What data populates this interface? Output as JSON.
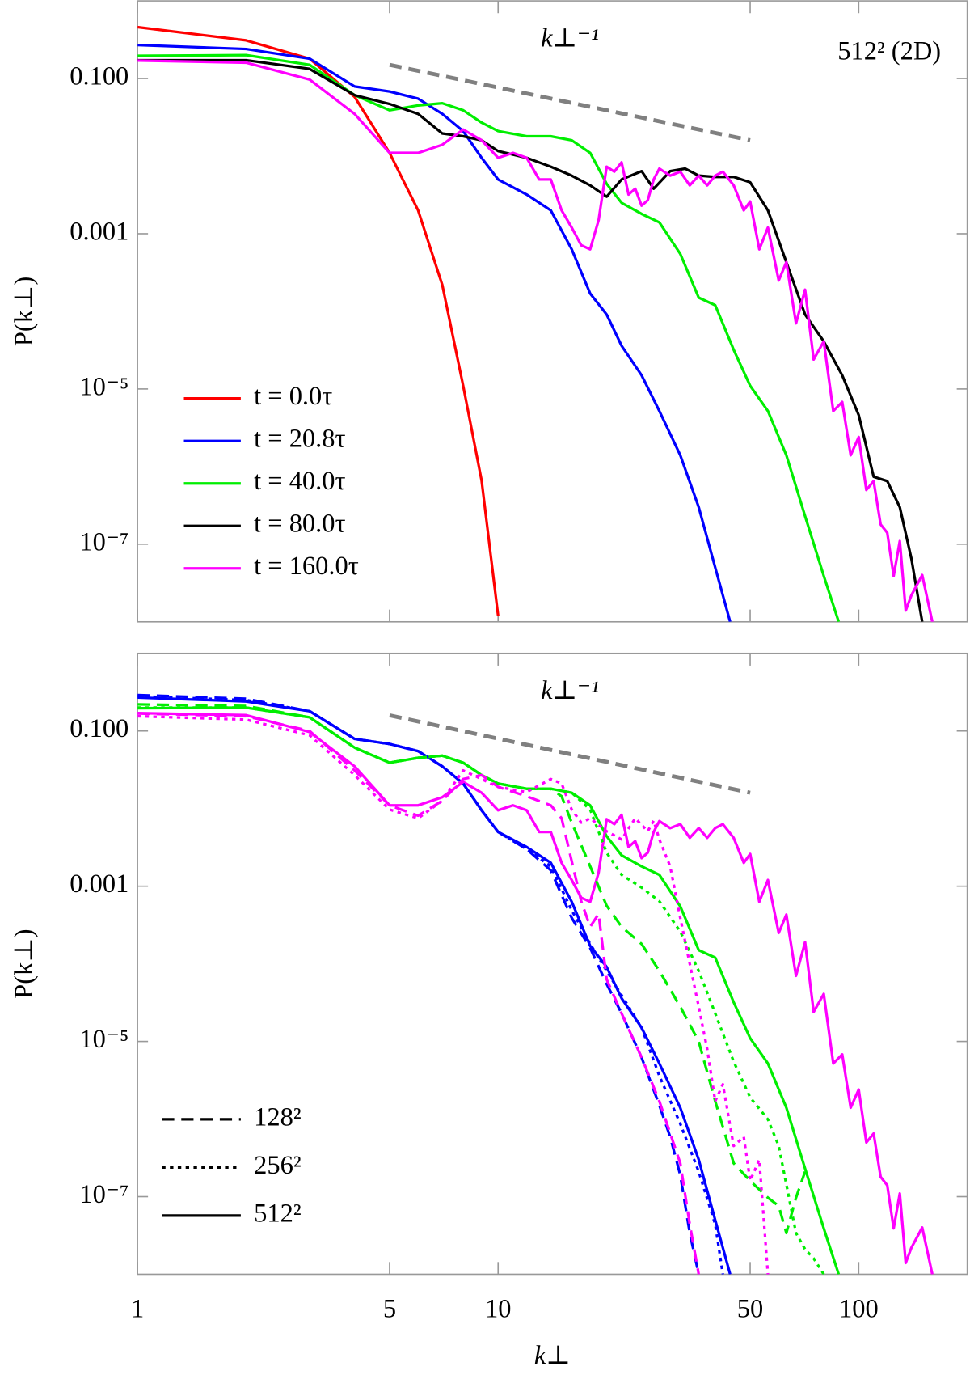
{
  "chart_data": [
    {
      "type": "line",
      "ylabel": "P(k⊥)",
      "xlim": [
        1,
        200
      ],
      "ylim": [
        1e-08,
        1
      ],
      "xscale": "log",
      "yscale": "log",
      "xticks": [
        1,
        5,
        10,
        50,
        100
      ],
      "xtick_labels": false,
      "yticks": [
        {
          "value": 0.1,
          "label": "0.100"
        },
        0.001,
        {
          "value": 1e-05,
          "label": "10⁻⁵"
        },
        {
          "value": 1e-07,
          "label": "10⁻⁷"
        }
      ],
      "annotation": "512² (2D)",
      "legend": "lower left",
      "reference_line": {
        "label": "k⊥⁻¹",
        "color": "#808080",
        "x": [
          5,
          50
        ],
        "values": [
          0.15,
          0.016
        ]
      },
      "series": [
        {
          "name": "t = 0.0τ",
          "color": "#ff0000",
          "x": [
            1,
            2,
            3,
            4,
            5,
            6,
            7,
            8,
            9,
            10
          ],
          "values": [
            0.46,
            0.31,
            0.18,
            0.058,
            0.011,
            0.002,
            0.00022,
            1.1e-05,
            6.6e-07,
            1.2e-08
          ]
        },
        {
          "name": "t = 20.8τ",
          "color": "#0000ff",
          "x": [
            1,
            2,
            3,
            4,
            5,
            6,
            7,
            8,
            9,
            10,
            12,
            14,
            16,
            18,
            20,
            22,
            25,
            28,
            32,
            36,
            40,
            44
          ],
          "values": [
            0.27,
            0.24,
            0.18,
            0.079,
            0.068,
            0.055,
            0.035,
            0.021,
            0.0095,
            0.005,
            0.0032,
            0.002,
            0.00063,
            0.00017,
            9.1e-05,
            3.6e-05,
            1.5e-05,
            5.2e-06,
            1.4e-06,
            3e-07,
            5e-08,
            1e-08
          ]
        },
        {
          "name": "t = 40.0τ",
          "color": "#00ee00",
          "x": [
            1,
            2,
            3,
            4,
            5,
            6,
            7,
            8,
            9,
            10,
            12,
            14,
            16,
            18,
            20,
            22,
            25,
            28,
            32,
            36,
            40,
            45,
            50,
            56,
            63,
            71,
            80,
            88
          ],
          "values": [
            0.196,
            0.2,
            0.15,
            0.061,
            0.039,
            0.045,
            0.048,
            0.039,
            0.027,
            0.021,
            0.018,
            0.018,
            0.016,
            0.011,
            0.0044,
            0.0025,
            0.0018,
            0.0014,
            0.00055,
            0.00015,
            0.00012,
            3.2e-05,
            1.1e-05,
            5.2e-06,
            1.4e-06,
            2.3e-07,
            3.9e-08,
            1e-08
          ]
        },
        {
          "name": "t = 80.0τ",
          "color": "#000000",
          "x": [
            1,
            2,
            3,
            4,
            5,
            6,
            7,
            8,
            9,
            10,
            12,
            14,
            16,
            18,
            20,
            22,
            25,
            27,
            30,
            33,
            36,
            40,
            45,
            50,
            56,
            63,
            71,
            80,
            90,
            100,
            110,
            120,
            130,
            140,
            150
          ],
          "values": [
            0.172,
            0.172,
            0.133,
            0.061,
            0.047,
            0.035,
            0.0196,
            0.018,
            0.016,
            0.0116,
            0.0095,
            0.0073,
            0.0056,
            0.0042,
            0.003,
            0.005,
            0.0064,
            0.0038,
            0.0064,
            0.0069,
            0.0056,
            0.0054,
            0.0054,
            0.0046,
            0.002,
            0.00043,
            9.1e-05,
            4.1e-05,
            1.5e-05,
            4.6e-06,
            7.4e-07,
            6.5e-07,
            3e-07,
            6.5e-08,
            1e-08
          ]
        },
        {
          "name": "t = 160.0τ",
          "color": "#ff00ff",
          "x": [
            1,
            2,
            3,
            4,
            5,
            6,
            7,
            8,
            9,
            10,
            11,
            12,
            13,
            14,
            15,
            16,
            17,
            18,
            19,
            20,
            21,
            22,
            23,
            24,
            25,
            26,
            27,
            28,
            30,
            32,
            34,
            36,
            38,
            40,
            42,
            45,
            48,
            50,
            53,
            56,
            60,
            63,
            67,
            71,
            75,
            80,
            85,
            90,
            95,
            100,
            105,
            110,
            115,
            120,
            125,
            130,
            135,
            140,
            150,
            160
          ],
          "values": [
            0.17,
            0.16,
            0.097,
            0.035,
            0.011,
            0.011,
            0.014,
            0.022,
            0.016,
            0.0095,
            0.011,
            0.0095,
            0.005,
            0.005,
            0.002,
            0.0012,
            0.00071,
            0.00063,
            0.0015,
            0.0073,
            0.0063,
            0.0083,
            0.0032,
            0.0038,
            0.0023,
            0.0027,
            0.005,
            0.0069,
            0.0056,
            0.0063,
            0.0042,
            0.0056,
            0.0042,
            0.0056,
            0.0063,
            0.0042,
            0.002,
            0.0026,
            0.00063,
            0.0012,
            0.00025,
            0.00043,
            7e-05,
            0.00019,
            2.4e-05,
            4.1e-05,
            5.2e-06,
            6.8e-06,
            1.4e-06,
            2.4e-06,
            5e-07,
            6.5e-07,
            1.8e-07,
            1.4e-07,
            3.9e-08,
            1.1e-07,
            1.4e-08,
            2.2e-08,
            4e-08,
            1e-08
          ]
        }
      ]
    },
    {
      "type": "line",
      "xlabel": "k⊥",
      "ylabel": "P(k⊥)",
      "xlim": [
        1,
        200
      ],
      "ylim": [
        1e-08,
        1
      ],
      "xscale": "log",
      "yscale": "log",
      "xticks": [
        1,
        5,
        10,
        50,
        100
      ],
      "xtick_labels": true,
      "yticks": [
        {
          "value": 0.1,
          "label": "0.100"
        },
        0.001,
        {
          "value": 1e-05,
          "label": "10⁻⁵"
        },
        {
          "value": 1e-07,
          "label": "10⁻⁷"
        }
      ],
      "legend": "lower left",
      "reference_line": {
        "label": "k⊥⁻¹",
        "color": "#808080",
        "x": [
          5,
          50
        ],
        "values": [
          0.159,
          0.016
        ]
      },
      "style_legend": [
        {
          "name": "128²",
          "style": "dashed"
        },
        {
          "name": "256²",
          "style": "dotted"
        },
        {
          "name": "512²",
          "style": "solid"
        }
      ],
      "series": [
        {
          "color": "#0000ff",
          "style": "solid",
          "x": [
            1,
            2,
            3,
            4,
            5,
            6,
            7,
            8,
            9,
            10,
            12,
            14,
            16,
            18,
            20,
            22,
            25,
            28,
            32,
            36,
            40,
            44
          ],
          "values": [
            0.27,
            0.24,
            0.18,
            0.079,
            0.068,
            0.055,
            0.035,
            0.021,
            0.0095,
            0.005,
            0.0032,
            0.002,
            0.00063,
            0.00017,
            9.1e-05,
            3.6e-05,
            1.5e-05,
            5.2e-06,
            1.4e-06,
            3e-07,
            5e-08,
            1e-08
          ]
        },
        {
          "color": "#00ee00",
          "style": "solid",
          "x": [
            1,
            2,
            3,
            4,
            5,
            6,
            7,
            8,
            9,
            10,
            12,
            14,
            16,
            18,
            20,
            22,
            25,
            28,
            32,
            36,
            40,
            45,
            50,
            56,
            63,
            71,
            80,
            88
          ],
          "values": [
            0.196,
            0.2,
            0.15,
            0.061,
            0.039,
            0.045,
            0.048,
            0.039,
            0.027,
            0.021,
            0.018,
            0.018,
            0.016,
            0.011,
            0.0044,
            0.0025,
            0.0018,
            0.0014,
            0.00055,
            0.00015,
            0.00012,
            3.2e-05,
            1.1e-05,
            5.2e-06,
            1.4e-06,
            2.3e-07,
            3.9e-08,
            1e-08
          ]
        },
        {
          "color": "#ff00ff",
          "style": "solid",
          "x": [
            1,
            2,
            3,
            4,
            5,
            6,
            7,
            8,
            9,
            10,
            11,
            12,
            13,
            14,
            15,
            16,
            17,
            18,
            19,
            20,
            21,
            22,
            23,
            24,
            25,
            26,
            27,
            28,
            30,
            32,
            34,
            36,
            38,
            40,
            42,
            45,
            48,
            50,
            53,
            56,
            60,
            63,
            67,
            71,
            75,
            80,
            85,
            90,
            95,
            100,
            105,
            110,
            115,
            120,
            125,
            130,
            135,
            140,
            150,
            160
          ],
          "values": [
            0.17,
            0.16,
            0.097,
            0.035,
            0.011,
            0.011,
            0.014,
            0.022,
            0.016,
            0.0095,
            0.011,
            0.0095,
            0.005,
            0.005,
            0.002,
            0.0012,
            0.00071,
            0.00063,
            0.0015,
            0.0073,
            0.0063,
            0.0083,
            0.0032,
            0.0038,
            0.0023,
            0.0027,
            0.005,
            0.0069,
            0.0056,
            0.0063,
            0.0042,
            0.0056,
            0.0042,
            0.0056,
            0.0063,
            0.0042,
            0.002,
            0.0026,
            0.00063,
            0.0012,
            0.00025,
            0.00043,
            7e-05,
            0.00019,
            2.4e-05,
            4.1e-05,
            5.2e-06,
            6.8e-06,
            1.4e-06,
            2.4e-06,
            5e-07,
            6.5e-07,
            1.8e-07,
            1.4e-07,
            3.9e-08,
            1.1e-07,
            1.4e-08,
            2.2e-08,
            4e-08,
            1e-08
          ]
        },
        {
          "color": "#0000ff",
          "style": "dashed",
          "x": [
            1,
            2,
            3,
            4,
            5,
            6,
            7,
            8,
            9,
            10,
            12,
            14,
            16,
            18,
            20,
            22,
            25,
            28,
            30,
            32,
            34,
            36
          ],
          "values": [
            0.29,
            0.26,
            0.18,
            0.079,
            0.068,
            0.055,
            0.035,
            0.021,
            0.0095,
            0.005,
            0.003,
            0.0016,
            0.00039,
            0.00016,
            5.5e-05,
            2.3e-05,
            6.2e-06,
            1.5e-06,
            5.9e-07,
            1.9e-07,
            3.4e-08,
            1e-08
          ]
        },
        {
          "color": "#0000ff",
          "style": "dotted",
          "x": [
            1,
            2,
            3,
            4,
            5,
            6,
            7,
            8,
            9,
            10,
            12,
            14,
            16,
            18,
            20,
            25,
            28,
            32,
            36,
            40,
            42
          ],
          "values": [
            0.28,
            0.25,
            0.18,
            0.079,
            0.068,
            0.055,
            0.035,
            0.021,
            0.0095,
            0.005,
            0.003,
            0.0018,
            0.00049,
            0.00018,
            8.1e-05,
            1.5e-05,
            3.6e-06,
            8.7e-07,
            2.1e-07,
            4.4e-08,
            1e-08
          ]
        },
        {
          "color": "#00ee00",
          "style": "dashed",
          "x": [
            1,
            2,
            3,
            4,
            5,
            6,
            7,
            8,
            9,
            10,
            12,
            14,
            15,
            16,
            18,
            20,
            22,
            25,
            28,
            32,
            36,
            40,
            45,
            50,
            56,
            60,
            63,
            67,
            71
          ],
          "values": [
            0.22,
            0.21,
            0.15,
            0.061,
            0.039,
            0.045,
            0.048,
            0.039,
            0.027,
            0.021,
            0.018,
            0.018,
            0.0144,
            0.0066,
            0.0018,
            0.00056,
            0.0003,
            0.00018,
            8.1e-05,
            2.8e-05,
            1e-05,
            1.7e-06,
            2.7e-07,
            1.6e-07,
            9.7e-08,
            7.6e-08,
            3.4e-08,
            9.7e-08,
            2.1e-07
          ]
        },
        {
          "color": "#00ee00",
          "style": "dotted",
          "x": [
            1,
            2,
            3,
            4,
            5,
            6,
            7,
            8,
            9,
            10,
            12,
            14,
            16,
            18,
            20,
            22,
            25,
            28,
            32,
            36,
            40,
            45,
            50,
            56,
            60,
            67,
            71,
            75,
            80
          ],
          "values": [
            0.2,
            0.2,
            0.15,
            0.061,
            0.039,
            0.045,
            0.048,
            0.039,
            0.027,
            0.021,
            0.018,
            0.018,
            0.016,
            0.0097,
            0.0027,
            0.0014,
            0.00096,
            0.00064,
            0.00026,
            8.1e-05,
            2.3e-05,
            5.5e-06,
            1.9e-06,
            9.9e-07,
            4.5e-07,
            3.4e-08,
            2.1e-08,
            1.6e-08,
            1e-08
          ]
        },
        {
          "color": "#ff00ff",
          "style": "dashed",
          "x": [
            1,
            2,
            3,
            4,
            5,
            6,
            7,
            8,
            9,
            10,
            12,
            14,
            15,
            16,
            17,
            18,
            19,
            20,
            22,
            25,
            28,
            32,
            34,
            36
          ],
          "values": [
            0.168,
            0.155,
            0.1,
            0.031,
            0.011,
            0.0081,
            0.0126,
            0.024,
            0.027,
            0.019,
            0.0144,
            0.011,
            0.0075,
            0.0021,
            0.00064,
            0.0003,
            0.00044,
            6.3e-05,
            2.3e-05,
            6.2e-06,
            1.7e-06,
            2.7e-07,
            4.4e-08,
            1e-08
          ]
        },
        {
          "color": "#ff00ff",
          "style": "dotted",
          "x": [
            1,
            2,
            3,
            4,
            5,
            6,
            7,
            8,
            9,
            10,
            12,
            14,
            15,
            16,
            17,
            18,
            20,
            22,
            24,
            26,
            27,
            28,
            30,
            32,
            34,
            36,
            38,
            40,
            42,
            45,
            48,
            50,
            53,
            56
          ],
          "values": [
            0.155,
            0.14,
            0.088,
            0.027,
            0.0097,
            0.0075,
            0.0126,
            0.031,
            0.024,
            0.019,
            0.0163,
            0.024,
            0.021,
            0.0097,
            0.0066,
            0.0075,
            0.0051,
            0.004,
            0.0075,
            0.0051,
            0.007,
            0.004,
            0.0018,
            0.00039,
            0.0001,
            2.8e-05,
            8e-06,
            1.7e-06,
            2.8e-06,
            4.5e-07,
            5.9e-07,
            1.6e-07,
            3e-07,
            1e-08
          ]
        }
      ]
    }
  ]
}
